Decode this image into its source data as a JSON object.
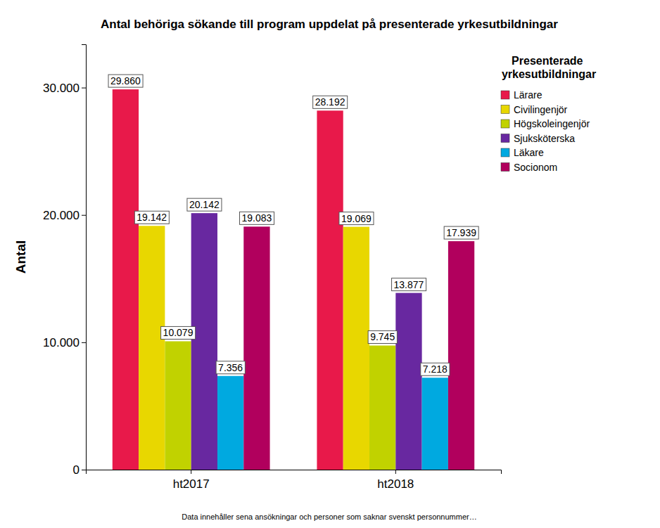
{
  "chart_data": {
    "type": "bar",
    "title": "Antal behöriga sökande till program uppdelat på presenterade yrkesutbildningar",
    "y_label": "Antal",
    "legend_title": "Presenterade yrkesutbildningar",
    "annotations": [
      "Data innehåller sena ansökningar och personer som saknar svenskt personnummer…"
    ],
    "categories": [
      "ht2017",
      "ht2018"
    ],
    "series": [
      {
        "name": "Lärare",
        "color": "#e8194a",
        "values": [
          29860,
          28192
        ],
        "value_labels": [
          "29.860",
          "28.192"
        ]
      },
      {
        "name": "Civilingenjör",
        "color": "#e8d700",
        "values": [
          19142,
          19069
        ],
        "value_labels": [
          "19.142",
          "19.069"
        ]
      },
      {
        "name": "Högskoleingenjör",
        "color": "#c1d200",
        "values": [
          10079,
          9745
        ],
        "value_labels": [
          "10.079",
          "9.745"
        ]
      },
      {
        "name": "Sjuksköterska",
        "color": "#6828a0",
        "values": [
          20142,
          13877
        ],
        "value_labels": [
          "20.142",
          "13.877"
        ]
      },
      {
        "name": "Läkare",
        "color": "#00a9e0",
        "values": [
          7356,
          7218
        ],
        "value_labels": [
          "7.356",
          "7.218"
        ]
      },
      {
        "name": "Socionom",
        "color": "#b1005d",
        "values": [
          19083,
          17939
        ],
        "value_labels": [
          "19.083",
          "17.939"
        ]
      }
    ],
    "ylim": [
      0,
      33400
    ],
    "yticks": [
      0,
      {
        "value": 10000,
        "label": "10.000"
      },
      {
        "value": 20000,
        "label": "20.000"
      },
      {
        "value": 30000,
        "label": "30.000"
      }
    ],
    "grid": false,
    "legend": "right",
    "data_labels": true
  }
}
